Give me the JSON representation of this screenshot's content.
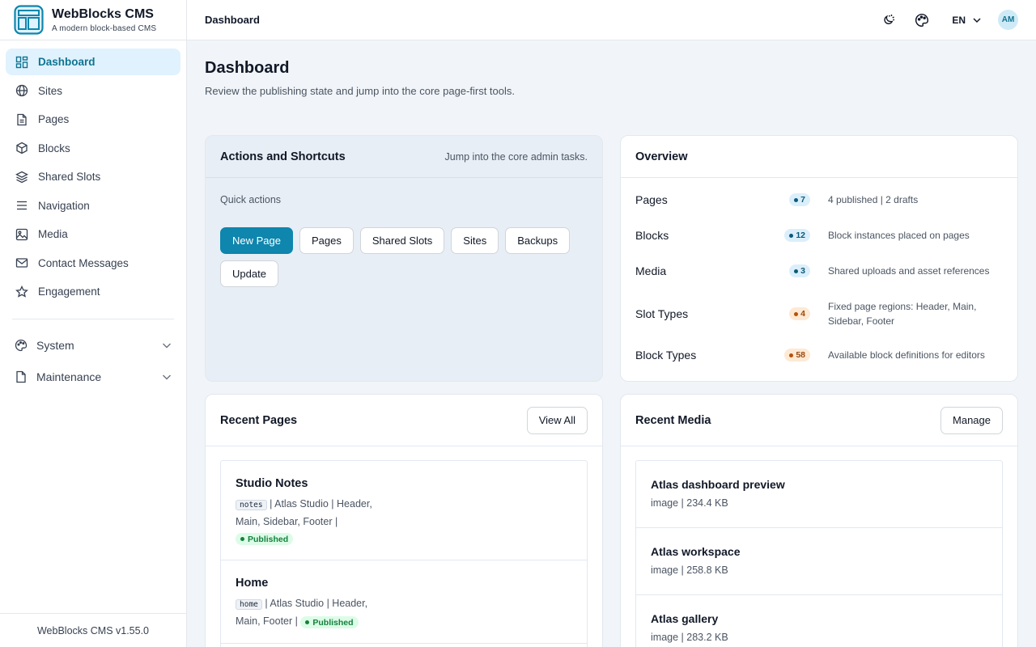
{
  "brand": {
    "name": "WebBlocks CMS",
    "tagline": "A modern block-based CMS"
  },
  "sidebar": {
    "items": [
      {
        "label": "Dashboard",
        "icon": "dashboard-icon",
        "active": true
      },
      {
        "label": "Sites",
        "icon": "globe-icon"
      },
      {
        "label": "Pages",
        "icon": "file-icon"
      },
      {
        "label": "Blocks",
        "icon": "cube-icon"
      },
      {
        "label": "Shared Slots",
        "icon": "layers-icon"
      },
      {
        "label": "Navigation",
        "icon": "menu-icon"
      },
      {
        "label": "Media",
        "icon": "image-icon"
      },
      {
        "label": "Contact Messages",
        "icon": "mail-icon"
      },
      {
        "label": "Engagement",
        "icon": "star-icon"
      }
    ],
    "groups": [
      {
        "label": "System",
        "icon": "palette-icon"
      },
      {
        "label": "Maintenance",
        "icon": "file-icon"
      }
    ],
    "footer": "WebBlocks CMS v1.55.0"
  },
  "topbar": {
    "title": "Dashboard",
    "language": "EN",
    "avatar": "AM"
  },
  "page": {
    "title": "Dashboard",
    "subtitle": "Review the publishing state and jump into the core page-first tools."
  },
  "actions": {
    "title": "Actions and Shortcuts",
    "aside": "Jump into the core admin tasks.",
    "quick_label": "Quick actions",
    "buttons": [
      "New Page",
      "Pages",
      "Shared Slots",
      "Sites",
      "Backups",
      "Update"
    ]
  },
  "overview": {
    "title": "Overview",
    "rows": [
      {
        "label": "Pages",
        "count": "7",
        "tone": "blue",
        "desc": "4 published | 2 drafts"
      },
      {
        "label": "Blocks",
        "count": "12",
        "tone": "blue",
        "desc": "Block instances placed on pages"
      },
      {
        "label": "Media",
        "count": "3",
        "tone": "blue",
        "desc": "Shared uploads and asset references"
      },
      {
        "label": "Slot Types",
        "count": "4",
        "tone": "orange",
        "desc": "Fixed page regions: Header, Main, Sidebar, Footer"
      },
      {
        "label": "Block Types",
        "count": "58",
        "tone": "orange",
        "desc": "Available block definitions for editors"
      }
    ]
  },
  "recent_pages": {
    "title": "Recent Pages",
    "button": "View All",
    "items": [
      {
        "title": "Studio Notes",
        "slug": "notes",
        "meta": " | Atlas Studio | Header, Main, Sidebar, Footer | ",
        "status": "Published"
      },
      {
        "title": "Home",
        "slug": "home",
        "meta": " | Atlas Studio | Header, Main, Footer | ",
        "status": "Published"
      }
    ]
  },
  "recent_media": {
    "title": "Recent Media",
    "button": "Manage",
    "items": [
      {
        "title": "Atlas dashboard preview",
        "sub": "image | 234.4 KB"
      },
      {
        "title": "Atlas workspace",
        "sub": "image | 258.8 KB"
      },
      {
        "title": "Atlas gallery",
        "sub": "image | 283.2 KB"
      }
    ]
  }
}
